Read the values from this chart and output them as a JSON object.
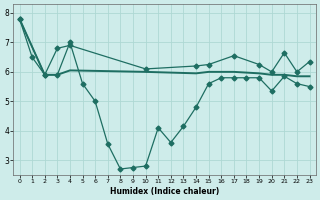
{
  "xlabel": "Humidex (Indice chaleur)",
  "background_color": "#ceecea",
  "grid_color": "#aed8d4",
  "line_color": "#1e6e62",
  "xlim": [
    -0.5,
    23.5
  ],
  "ylim": [
    2.5,
    8.3
  ],
  "yticks": [
    3,
    4,
    5,
    6,
    7,
    8
  ],
  "xticks": [
    0,
    1,
    2,
    3,
    4,
    5,
    6,
    7,
    8,
    9,
    10,
    11,
    12,
    13,
    14,
    15,
    16,
    17,
    18,
    19,
    20,
    21,
    22,
    23
  ],
  "line1_x": [
    0,
    1,
    2,
    3,
    4,
    5,
    6,
    7,
    8,
    9,
    10,
    11,
    12,
    13,
    14,
    15,
    16,
    17,
    18,
    19,
    20,
    21,
    22,
    23
  ],
  "line1_y": [
    7.8,
    6.5,
    5.9,
    5.9,
    7.0,
    5.6,
    5.0,
    3.55,
    2.7,
    2.75,
    2.8,
    4.1,
    3.6,
    4.15,
    4.8,
    5.6,
    5.8,
    5.8,
    5.8,
    5.8,
    5.35,
    5.85,
    5.6,
    5.5
  ],
  "line2_x": [
    0,
    2,
    3,
    4,
    10,
    14,
    15,
    17,
    19,
    20,
    21,
    22,
    23
  ],
  "line2_y": [
    7.8,
    5.9,
    6.8,
    6.9,
    6.1,
    6.2,
    6.25,
    6.55,
    6.25,
    6.0,
    6.65,
    6.0,
    6.35
  ],
  "line3_x": [
    0,
    2,
    3,
    4,
    10,
    14,
    15,
    17,
    19,
    20,
    21,
    22,
    23
  ],
  "line3_y": [
    7.8,
    5.9,
    5.9,
    6.05,
    6.0,
    5.95,
    6.0,
    6.0,
    5.95,
    5.9,
    5.9,
    5.85,
    5.85
  ]
}
